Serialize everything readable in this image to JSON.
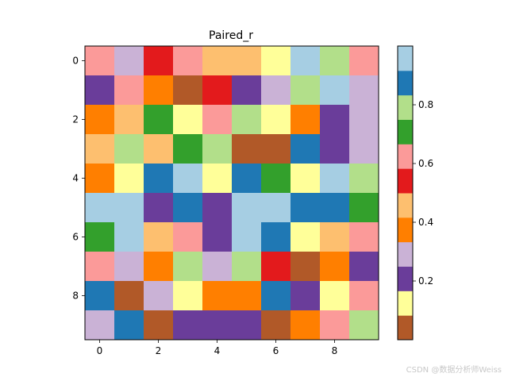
{
  "chart_data": {
    "type": "heatmap",
    "title": "Paired_r",
    "colormap": "Paired_r",
    "x_ticks": [
      "0",
      "2",
      "4",
      "6",
      "8"
    ],
    "y_ticks": [
      "0",
      "2",
      "4",
      "6",
      "8"
    ],
    "colorbar_ticks": [
      "0.2",
      "0.4",
      "0.6",
      "0.8"
    ],
    "colorbar_tick_values": [
      0.2,
      0.4,
      0.6,
      0.8
    ],
    "colorbar_range": [
      0.0,
      1.0
    ],
    "palette": [
      "#b15928",
      "#ffff99",
      "#6a3d9a",
      "#cab2d6",
      "#ff7f00",
      "#fdbf6f",
      "#e31a1c",
      "#fb9a99",
      "#33a02c",
      "#b2df8a",
      "#1f78b4",
      "#a6cee3"
    ],
    "cells": [
      [
        7,
        3,
        6,
        7,
        5,
        5,
        1,
        11,
        9,
        7
      ],
      [
        2,
        7,
        4,
        0,
        6,
        2,
        3,
        9,
        11,
        3
      ],
      [
        4,
        5,
        8,
        1,
        7,
        9,
        1,
        4,
        2,
        3
      ],
      [
        5,
        9,
        5,
        8,
        9,
        0,
        0,
        10,
        2,
        3
      ],
      [
        4,
        1,
        10,
        11,
        1,
        10,
        8,
        1,
        11,
        9
      ],
      [
        11,
        11,
        2,
        10,
        2,
        11,
        11,
        10,
        10,
        8
      ],
      [
        8,
        11,
        5,
        7,
        2,
        11,
        10,
        1,
        5,
        7
      ],
      [
        7,
        3,
        4,
        9,
        3,
        9,
        6,
        0,
        4,
        2
      ],
      [
        10,
        0,
        3,
        1,
        4,
        4,
        10,
        2,
        1,
        7
      ],
      [
        3,
        10,
        0,
        2,
        2,
        2,
        0,
        4,
        7,
        9
      ]
    ]
  },
  "watermark": "CSDN @数据分析师Weiss"
}
